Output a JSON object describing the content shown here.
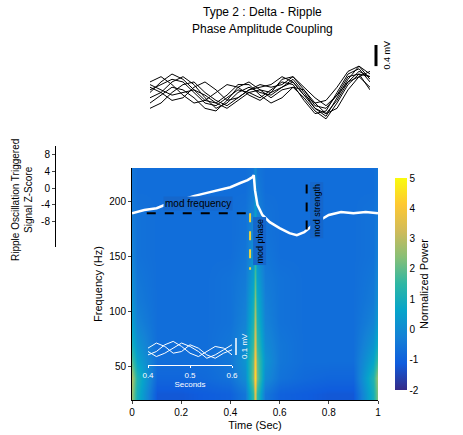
{
  "chart_data": [
    {
      "type": "line",
      "title": "Type 2 : Delta - Ripple",
      "subtitle": "Phase Amplitude Coupling",
      "x": [
        0,
        0.05,
        0.1,
        0.15,
        0.2,
        0.25,
        0.3,
        0.35,
        0.4,
        0.45,
        0.5,
        0.55,
        0.6,
        0.65,
        0.7,
        0.75,
        0.8,
        0.85,
        0.9,
        0.95,
        1
      ],
      "series": [
        {
          "color": "#000000",
          "values": [
            0.05,
            0.15,
            0.25,
            0.2,
            0.0,
            -0.2,
            -0.25,
            -0.1,
            0.05,
            0.0,
            -0.1,
            0.05,
            0.2,
            0.15,
            -0.15,
            -0.4,
            -0.35,
            0.0,
            0.35,
            0.45,
            0.2
          ]
        },
        {
          "color": "#000000",
          "values": [
            -0.1,
            0.0,
            0.2,
            0.3,
            0.15,
            -0.1,
            -0.3,
            -0.2,
            0.0,
            0.1,
            0.0,
            -0.05,
            0.1,
            0.25,
            0.0,
            -0.3,
            -0.45,
            -0.1,
            0.25,
            0.5,
            0.35
          ]
        },
        {
          "color": "#000000",
          "values": [
            0.2,
            0.3,
            0.15,
            -0.05,
            -0.2,
            -0.15,
            0.0,
            0.15,
            0.1,
            -0.05,
            -0.15,
            0.0,
            0.25,
            0.3,
            0.05,
            -0.25,
            -0.3,
            -0.05,
            0.2,
            0.3,
            0.1
          ]
        },
        {
          "color": "#000000",
          "values": [
            -0.2,
            -0.05,
            0.1,
            0.05,
            -0.1,
            -0.3,
            -0.35,
            -0.15,
            0.1,
            0.2,
            0.05,
            -0.1,
            0.05,
            0.1,
            -0.1,
            -0.35,
            -0.5,
            -0.2,
            0.15,
            0.35,
            0.3
          ]
        },
        {
          "color": "#000000",
          "values": [
            0.1,
            0.0,
            -0.15,
            -0.1,
            0.1,
            0.2,
            0.05,
            -0.15,
            -0.1,
            0.05,
            0.1,
            0.15,
            0.3,
            0.2,
            -0.05,
            -0.2,
            -0.15,
            0.1,
            0.4,
            0.5,
            0.25
          ]
        },
        {
          "color": "#000000",
          "values": [
            0.0,
            0.2,
            0.35,
            0.25,
            0.05,
            -0.15,
            -0.2,
            -0.05,
            0.15,
            0.15,
            -0.05,
            -0.2,
            -0.1,
            0.1,
            0.05,
            -0.2,
            -0.4,
            -0.3,
            0.05,
            0.3,
            0.4
          ]
        },
        {
          "color": "#000000",
          "values": [
            -0.3,
            -0.2,
            0.0,
            0.15,
            0.2,
            0.0,
            -0.15,
            -0.25,
            -0.1,
            0.05,
            0.15,
            0.1,
            0.15,
            0.3,
            0.1,
            -0.1,
            -0.25,
            -0.05,
            0.3,
            0.35,
            0.05
          ]
        },
        {
          "color": "#000000",
          "values": [
            0.15,
            0.05,
            -0.05,
            0.0,
            0.05,
            -0.05,
            -0.2,
            -0.3,
            -0.15,
            0.0,
            0.05,
            0.0,
            0.1,
            0.2,
            -0.05,
            -0.3,
            -0.4,
            -0.15,
            0.2,
            0.4,
            0.3
          ]
        }
      ],
      "xlim": [
        0,
        1
      ],
      "ylim": [
        -0.9,
        0.9
      ],
      "tick_labels": false,
      "scale_bar": {
        "value": 0.4,
        "label": "0.4 mV"
      }
    },
    {
      "type": "heatmap",
      "x": [
        0,
        0.02,
        0.1,
        0.2,
        0.3,
        0.4,
        0.46,
        0.49,
        0.5,
        0.51,
        0.54,
        0.6,
        0.7,
        0.8,
        0.9,
        0.98,
        1
      ],
      "y": [
        25,
        40,
        55,
        70,
        90,
        110,
        130,
        150,
        170,
        190,
        210,
        225
      ],
      "cells": [
        [
          2.5,
          1.0,
          -1.2,
          -1.2,
          -1.1,
          -1.0,
          -0.5,
          1.5,
          3.5,
          1.5,
          -0.5,
          -1.0,
          -1.1,
          -1.2,
          -1.2,
          1.0,
          2.5
        ],
        [
          2.8,
          1.2,
          -0.9,
          -0.9,
          -0.8,
          -0.6,
          0.0,
          2.2,
          4.5,
          2.2,
          0.0,
          -0.6,
          -0.8,
          -0.9,
          -0.9,
          1.2,
          2.8
        ],
        [
          1.8,
          0.6,
          -0.7,
          -0.7,
          -0.7,
          -0.5,
          0.2,
          2.0,
          4.2,
          2.0,
          0.2,
          -0.5,
          -0.7,
          -0.7,
          -0.7,
          0.6,
          1.8
        ],
        [
          1.0,
          0.2,
          -0.7,
          -0.7,
          -0.7,
          -0.5,
          0.0,
          1.6,
          3.6,
          1.6,
          0.0,
          -0.5,
          -0.7,
          -0.7,
          -0.7,
          0.2,
          1.0
        ],
        [
          0.5,
          -0.2,
          -0.7,
          -0.7,
          -0.7,
          -0.6,
          -0.2,
          1.2,
          3.0,
          1.2,
          -0.2,
          -0.6,
          -0.7,
          -0.7,
          -0.7,
          -0.2,
          0.5
        ],
        [
          0.2,
          -0.4,
          -0.7,
          -0.7,
          -0.7,
          -0.6,
          -0.3,
          0.9,
          2.4,
          0.9,
          -0.3,
          -0.6,
          -0.7,
          -0.7,
          -0.7,
          -0.4,
          0.2
        ],
        [
          0.0,
          -0.5,
          -0.7,
          -0.7,
          -0.7,
          -0.6,
          -0.4,
          0.5,
          1.8,
          0.5,
          -0.4,
          -0.6,
          -0.7,
          -0.7,
          -0.7,
          -0.5,
          0.0
        ],
        [
          -0.2,
          -0.6,
          -0.7,
          -0.7,
          -0.7,
          -0.7,
          -0.5,
          0.2,
          1.3,
          0.2,
          -0.5,
          -0.7,
          -0.7,
          -0.7,
          -0.7,
          -0.6,
          -0.2
        ],
        [
          -0.3,
          -0.6,
          -0.7,
          -0.7,
          -0.7,
          -0.7,
          -0.6,
          0.0,
          0.9,
          0.0,
          -0.6,
          -0.7,
          -0.7,
          -0.7,
          -0.7,
          -0.6,
          -0.3
        ],
        [
          -0.4,
          -0.6,
          -0.7,
          -0.7,
          -0.7,
          -0.7,
          -0.6,
          -0.2,
          0.5,
          -0.2,
          -0.6,
          -0.7,
          -0.7,
          -0.7,
          -0.7,
          -0.6,
          -0.4
        ],
        [
          -0.5,
          -0.7,
          -0.7,
          -0.7,
          -0.7,
          -0.7,
          -0.7,
          -0.4,
          0.2,
          -0.4,
          -0.7,
          -0.7,
          -0.7,
          -0.7,
          -0.7,
          -0.7,
          -0.5
        ],
        [
          -0.5,
          -0.7,
          -0.7,
          -0.7,
          -0.7,
          -0.7,
          -0.7,
          -0.5,
          0.0,
          -0.5,
          -0.7,
          -0.7,
          -0.7,
          -0.7,
          -0.7,
          -0.7,
          -0.5
        ]
      ],
      "xlim": [
        0,
        1
      ],
      "xticks": [
        0,
        0.2,
        0.4,
        0.6,
        0.8,
        1
      ],
      "ylim": [
        20,
        230
      ],
      "yticks": [
        50,
        100,
        150,
        200
      ],
      "xlabel": "Time (Sec)",
      "ylabel": "Frequency (Hz)",
      "color_range": [
        -2,
        5
      ],
      "color_ticks": [
        -2,
        -1,
        0,
        1,
        2,
        3,
        4,
        5
      ],
      "color_label": "Normalized Power",
      "series": [
        {
          "type": "line",
          "axis": "y2",
          "color": "#ffffff",
          "x": [
            0,
            0.05,
            0.1,
            0.15,
            0.2,
            0.25,
            0.3,
            0.35,
            0.4,
            0.44,
            0.47,
            0.49,
            0.495,
            0.5,
            0.51,
            0.53,
            0.56,
            0.6,
            0.64,
            0.67,
            0.7,
            0.75,
            0.8,
            0.85,
            0.9,
            0.95,
            1
          ],
          "values": [
            -6.0,
            -5.2,
            -4.8,
            -3.6,
            -2.9,
            -1.9,
            -1.2,
            -0.5,
            0.2,
            1.2,
            1.9,
            2.6,
            3.1,
            -0.5,
            -4.0,
            -6.4,
            -8.1,
            -9.5,
            -10.7,
            -11.2,
            -10.5,
            -8.1,
            -6.4,
            -5.7,
            -6.0,
            -5.7,
            -6.0
          ]
        }
      ],
      "y2lim": [
        -14,
        10
      ],
      "y2ticks": [
        -8,
        -4,
        0,
        4,
        8
      ],
      "y2label": "Ripple Oscillation Triggered Signal Z-Score",
      "annotations": [
        {
          "text": "mod frequency",
          "x": [
            0.06,
            0.48
          ],
          "y": [
            189,
            189
          ],
          "color": "#000000",
          "line_style": "dash"
        },
        {
          "text": "mod phase",
          "x": [
            0.48,
            0.48
          ],
          "y": [
            189,
            138
          ],
          "color": "#f2d53c",
          "line_style": "dash"
        },
        {
          "text": "mod strength",
          "x": [
            0.71,
            0.71
          ],
          "y": [
            215,
            169
          ],
          "color": "#000000",
          "line_style": "dash"
        }
      ],
      "inset": {
        "type": "line",
        "x": [
          0.4,
          0.42,
          0.44,
          0.46,
          0.48,
          0.5,
          0.52,
          0.54,
          0.56,
          0.58,
          0.6
        ],
        "series": [
          {
            "color": "#ffffff",
            "values": [
              0.02,
              0.05,
              0.03,
              -0.01,
              0.0,
              0.04,
              0.02,
              -0.02,
              -0.04,
              -0.01,
              0.01
            ]
          },
          {
            "color": "#ffffff",
            "values": [
              -0.02,
              0.0,
              0.04,
              0.06,
              0.03,
              -0.01,
              -0.03,
              0.0,
              0.03,
              0.02,
              -0.02
            ]
          },
          {
            "color": "#ffffff",
            "values": [
              0.0,
              -0.03,
              -0.01,
              0.02,
              0.05,
              0.03,
              0.0,
              -0.04,
              -0.02,
              0.01,
              0.04
            ]
          }
        ],
        "xlim": [
          0.4,
          0.6
        ],
        "xticks": [
          0.4,
          0.5,
          0.6
        ],
        "xlabel": "Seconds",
        "ylim": [
          -0.08,
          0.08
        ],
        "tick_labels": "x",
        "scale_bar": {
          "value": 0.1,
          "label": "0.1 mV"
        }
      }
    }
  ]
}
